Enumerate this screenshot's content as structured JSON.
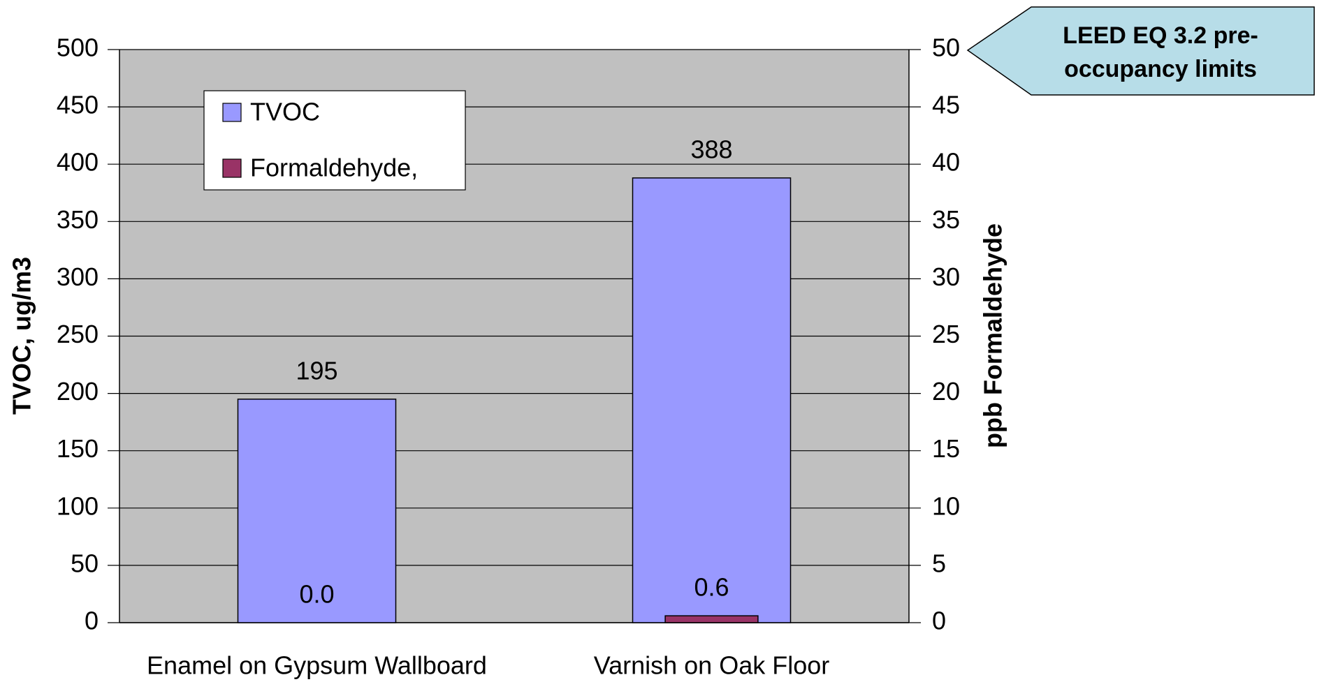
{
  "chart_data": {
    "type": "bar",
    "categories": [
      "Enamel on Gypsum Wallboard",
      "Varnish on Oak Floor"
    ],
    "series": [
      {
        "name": "TVOC",
        "color": "#9999ff",
        "values": [
          195,
          388
        ]
      },
      {
        "name": "Formaldehyde,",
        "color": "#993366",
        "values": [
          0,
          0.6
        ],
        "value_labels": [
          "0.0",
          "0.6"
        ],
        "axis": "y2"
      }
    ],
    "ylabel": "TVOC, ug/m3",
    "y2label": "ppb Formaldehyde",
    "ylim": [
      0,
      500
    ],
    "yticks": [
      0,
      50,
      100,
      150,
      200,
      250,
      300,
      350,
      400,
      450,
      500
    ],
    "y2lim": [
      0,
      50
    ],
    "y2ticks": [
      0,
      5,
      10,
      15,
      20,
      25,
      30,
      35,
      40,
      45,
      50
    ],
    "grid": true,
    "plot_background": "#c0c0c0",
    "legend": "upper left",
    "annotation": [
      "LEED EQ 3.2 pre-",
      "occupancy limits"
    ]
  }
}
